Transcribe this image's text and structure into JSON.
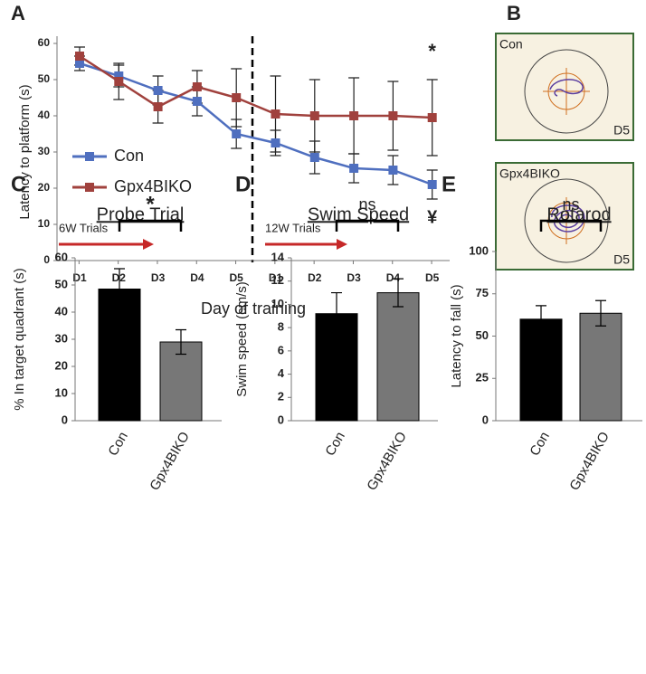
{
  "chart_data": [
    {
      "type": "line",
      "panel": "A",
      "x_label": "Day of training",
      "y_label": "Latency to platform (s)",
      "categories": [
        "D1",
        "D2",
        "D3",
        "D4",
        "D5",
        "D1",
        "D2",
        "D3",
        "D4",
        "D5"
      ],
      "series": [
        {
          "name": "Con",
          "color": "#4f6fbf",
          "values": [
            54.5,
            51,
            47,
            44,
            35,
            32.5,
            28.5,
            25.5,
            25,
            21
          ],
          "errors": [
            2,
            3,
            4,
            4,
            4,
            3.5,
            4.5,
            4,
            4,
            4
          ]
        },
        {
          "name": "Gpx4BIKO",
          "color": "#a0413d",
          "values": [
            56.5,
            49.5,
            42.5,
            48,
            45,
            40.5,
            40,
            40,
            40,
            39.5
          ],
          "errors": [
            2.5,
            5,
            4.5,
            4.5,
            8,
            10.5,
            10,
            10.5,
            9.5,
            10.5
          ]
        }
      ],
      "ylim": [
        0,
        60
      ],
      "yticks": [
        0,
        10,
        20,
        30,
        40,
        50,
        60
      ],
      "annotations": [
        "6W Trials",
        "12W Trials",
        "*",
        "¥"
      ]
    },
    {
      "type": "bar",
      "panel": "C",
      "title": "Probe Trial",
      "y_label": "% In target quadrant (s)",
      "categories": [
        "Con",
        "Gpx4BIKO"
      ],
      "values": [
        48.5,
        29
      ],
      "errors": [
        7.5,
        4.5
      ],
      "colors": [
        "#000000",
        "#777777"
      ],
      "ylim": [
        0,
        60
      ],
      "yticks": [
        0,
        10,
        20,
        30,
        40,
        50,
        60
      ],
      "annotation": "*"
    },
    {
      "type": "bar",
      "panel": "D",
      "title": "Swim Speed",
      "y_label": "Swim speed (cm/s)",
      "categories": [
        "Con",
        "Gpx4BIKO"
      ],
      "values": [
        9.2,
        11
      ],
      "errors": [
        1.8,
        1.2
      ],
      "colors": [
        "#000000",
        "#777777"
      ],
      "ylim": [
        0,
        14
      ],
      "yticks": [
        0,
        2,
        4,
        6,
        8,
        10,
        12,
        14
      ],
      "annotation": "ns"
    },
    {
      "type": "bar",
      "panel": "E",
      "title": "Rotarod",
      "y_label": "Latency to fall (s)",
      "categories": [
        "Con",
        "Gpx4BIKO"
      ],
      "values": [
        60,
        63.5
      ],
      "errors": [
        8,
        7.5
      ],
      "colors": [
        "#000000",
        "#777777"
      ],
      "ylim": [
        0,
        100
      ],
      "yticks": [
        0,
        25,
        50,
        75,
        100
      ],
      "annotation": "ns"
    }
  ],
  "panel_b": {
    "label": "B",
    "images": [
      {
        "group": "Con",
        "day": "D5"
      },
      {
        "group": "Gpx4BIKO",
        "day": "D5"
      }
    ]
  }
}
